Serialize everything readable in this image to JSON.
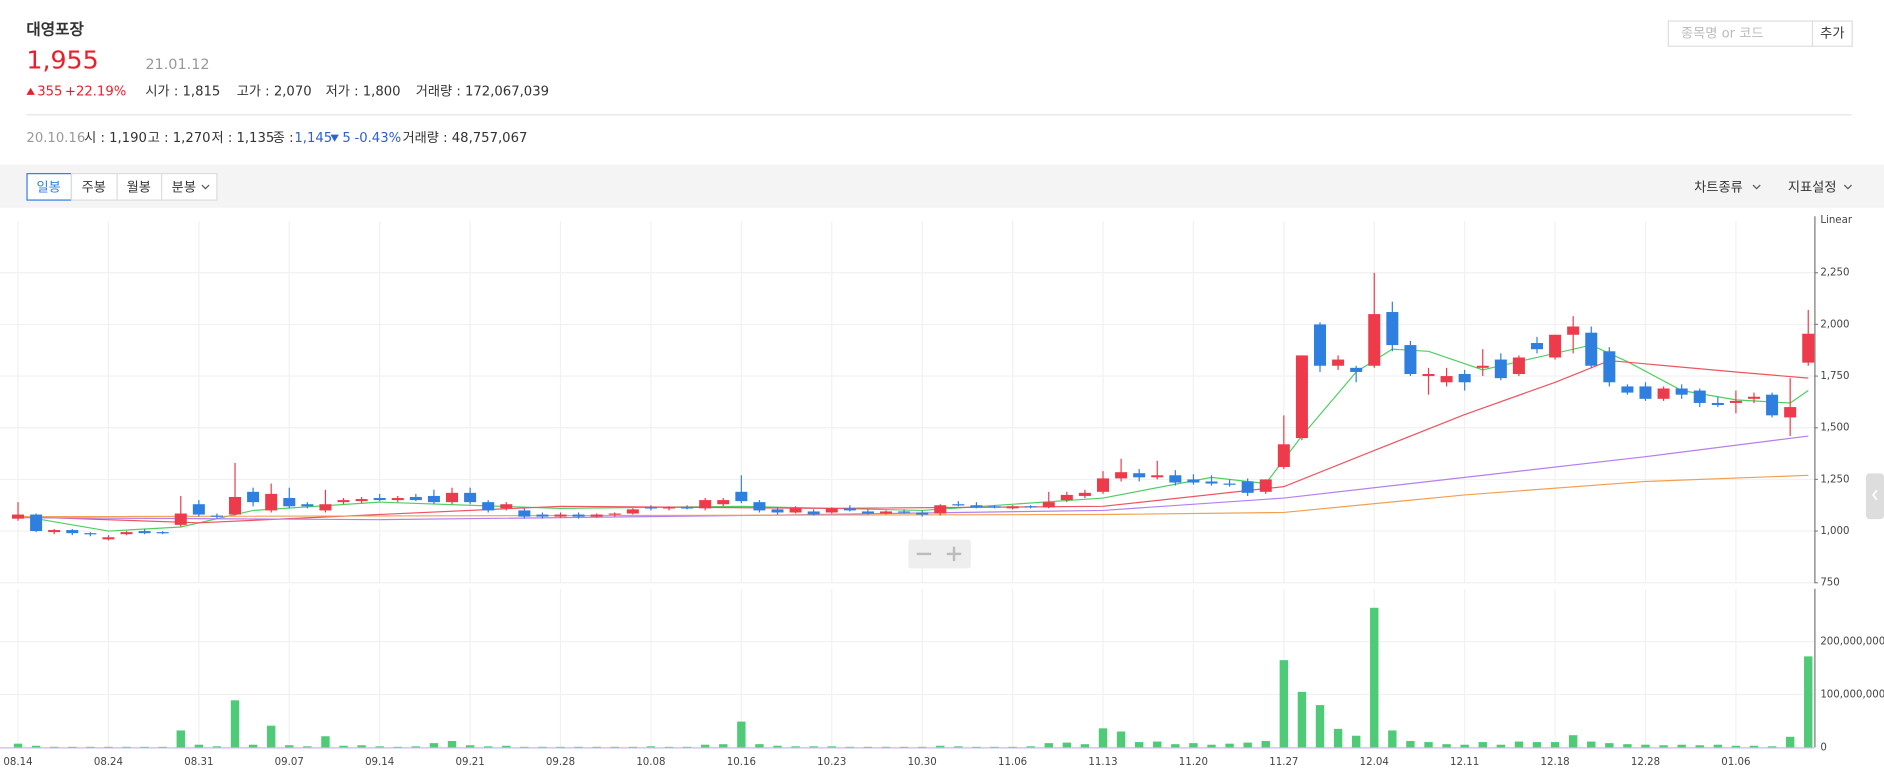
{
  "header": {
    "name": "대영포장",
    "price": "1,955",
    "date": "21.01.12",
    "change": "355",
    "change_rate": "+22.19%",
    "open": "시가 : 1,815",
    "high": "고가 : 2,070",
    "low": "저가 : 1,800",
    "volume": "거래량 : 172,067,039"
  },
  "tooltip": {
    "date": "20.10.16",
    "open": "시 : 1,190",
    "high": "고 : 1,270",
    "low": "저 : 1,135",
    "close_label": "종 :",
    "close": "1,145",
    "change": "5",
    "change_rate": "-0.43%",
    "volume": "거래량 : 48,757,067"
  },
  "search": {
    "placeholder": "종목명 or 코드",
    "button": "추가"
  },
  "toolbar": {
    "periods": [
      "일봉",
      "주봉",
      "월봉",
      "분봉"
    ],
    "chart_type": "차트종류",
    "indicators": "지표설정"
  },
  "chart_data": {
    "type": "candlestick",
    "scale_label": "Linear",
    "up_color": "#ee3b4b",
    "down_color": "#2f7fe0",
    "volume_color": "#4fcb78",
    "grid": true,
    "categories": [
      "08.14",
      null,
      null,
      null,
      null,
      "08.24",
      null,
      null,
      null,
      null,
      "08.31",
      null,
      null,
      null,
      null,
      "09.07",
      null,
      null,
      null,
      null,
      "09.14",
      null,
      null,
      null,
      null,
      "09.21",
      null,
      null,
      null,
      null,
      "09.28",
      null,
      null,
      null,
      null,
      "10.08",
      null,
      null,
      null,
      null,
      "10.16",
      null,
      null,
      null,
      null,
      "10.23",
      null,
      null,
      null,
      null,
      "10.30",
      null,
      null,
      null,
      null,
      "11.06",
      null,
      null,
      null,
      null,
      "11.13",
      null,
      null,
      null,
      null,
      "11.20",
      null,
      null,
      null,
      null,
      "11.27",
      null,
      null,
      null,
      null,
      "12.04",
      null,
      null,
      null,
      null,
      "12.11",
      null,
      null,
      null,
      null,
      "12.18",
      null,
      null,
      null,
      null,
      "12.28",
      null,
      null,
      null,
      null,
      "01.06",
      null,
      null,
      null,
      null
    ],
    "candles": [
      [
        1060,
        1140,
        1050,
        1080
      ],
      [
        1080,
        1085,
        995,
        1000
      ],
      [
        995,
        1010,
        985,
        1005
      ],
      [
        1005,
        1010,
        980,
        990
      ],
      [
        990,
        995,
        975,
        985
      ],
      [
        960,
        980,
        955,
        970
      ],
      [
        985,
        1000,
        980,
        995
      ],
      [
        1000,
        1010,
        985,
        990
      ],
      [
        995,
        1000,
        985,
        990
      ],
      [
        1030,
        1170,
        1020,
        1085
      ],
      [
        1130,
        1150,
        1070,
        1080
      ],
      [
        1075,
        1085,
        1060,
        1070
      ],
      [
        1080,
        1330,
        1075,
        1165
      ],
      [
        1190,
        1210,
        1120,
        1140
      ],
      [
        1100,
        1230,
        1090,
        1180
      ],
      [
        1160,
        1210,
        1110,
        1120
      ],
      [
        1130,
        1140,
        1110,
        1120
      ],
      [
        1100,
        1200,
        1090,
        1130
      ],
      [
        1140,
        1160,
        1130,
        1150
      ],
      [
        1145,
        1165,
        1135,
        1155
      ],
      [
        1160,
        1180,
        1145,
        1150
      ],
      [
        1150,
        1170,
        1140,
        1160
      ],
      [
        1165,
        1180,
        1145,
        1150
      ],
      [
        1170,
        1200,
        1130,
        1140
      ],
      [
        1140,
        1210,
        1130,
        1185
      ],
      [
        1185,
        1210,
        1130,
        1140
      ],
      [
        1140,
        1150,
        1090,
        1100
      ],
      [
        1110,
        1140,
        1100,
        1130
      ],
      [
        1100,
        1110,
        1060,
        1070
      ],
      [
        1080,
        1090,
        1060,
        1070
      ],
      [
        1070,
        1090,
        1065,
        1080
      ],
      [
        1080,
        1090,
        1060,
        1070
      ],
      [
        1070,
        1085,
        1065,
        1080
      ],
      [
        1080,
        1090,
        1070,
        1085
      ],
      [
        1085,
        1110,
        1080,
        1105
      ],
      [
        1115,
        1125,
        1100,
        1110
      ],
      [
        1110,
        1120,
        1100,
        1115
      ],
      [
        1115,
        1125,
        1105,
        1110
      ],
      [
        1110,
        1160,
        1100,
        1150
      ],
      [
        1130,
        1160,
        1120,
        1150
      ],
      [
        1190,
        1270,
        1135,
        1145
      ],
      [
        1140,
        1150,
        1090,
        1100
      ],
      [
        1105,
        1115,
        1080,
        1090
      ],
      [
        1090,
        1120,
        1085,
        1110
      ],
      [
        1095,
        1105,
        1075,
        1080
      ],
      [
        1090,
        1115,
        1085,
        1110
      ],
      [
        1110,
        1125,
        1095,
        1100
      ],
      [
        1095,
        1105,
        1080,
        1085
      ],
      [
        1085,
        1100,
        1080,
        1095
      ],
      [
        1095,
        1105,
        1085,
        1090
      ],
      [
        1090,
        1100,
        1070,
        1080
      ],
      [
        1085,
        1130,
        1075,
        1125
      ],
      [
        1130,
        1145,
        1120,
        1125
      ],
      [
        1125,
        1140,
        1110,
        1115
      ],
      [
        1120,
        1125,
        1110,
        1115
      ],
      [
        1110,
        1125,
        1105,
        1120
      ],
      [
        1120,
        1125,
        1110,
        1115
      ],
      [
        1115,
        1190,
        1110,
        1140
      ],
      [
        1150,
        1190,
        1140,
        1175
      ],
      [
        1170,
        1200,
        1160,
        1185
      ],
      [
        1190,
        1290,
        1180,
        1255
      ],
      [
        1255,
        1350,
        1240,
        1285
      ],
      [
        1280,
        1300,
        1240,
        1260
      ],
      [
        1260,
        1340,
        1250,
        1270
      ],
      [
        1270,
        1295,
        1220,
        1235
      ],
      [
        1250,
        1275,
        1225,
        1235
      ],
      [
        1240,
        1270,
        1220,
        1230
      ],
      [
        1230,
        1250,
        1215,
        1225
      ],
      [
        1240,
        1255,
        1170,
        1185
      ],
      [
        1190,
        1250,
        1180,
        1250
      ],
      [
        1310,
        1560,
        1300,
        1420
      ],
      [
        1450,
        1850,
        1440,
        1850
      ],
      [
        2000,
        2010,
        1770,
        1800
      ],
      [
        1800,
        1850,
        1780,
        1830
      ],
      [
        1790,
        1800,
        1720,
        1770
      ],
      [
        1800,
        2250,
        1790,
        2050
      ],
      [
        2060,
        2110,
        1870,
        1900
      ],
      [
        1900,
        1920,
        1750,
        1760
      ],
      [
        1750,
        1790,
        1660,
        1760
      ],
      [
        1720,
        1790,
        1700,
        1750
      ],
      [
        1760,
        1780,
        1680,
        1720
      ],
      [
        1790,
        1880,
        1750,
        1800
      ],
      [
        1830,
        1860,
        1730,
        1740
      ],
      [
        1760,
        1850,
        1750,
        1840
      ],
      [
        1910,
        1940,
        1860,
        1880
      ],
      [
        1840,
        1950,
        1830,
        1950
      ],
      [
        1950,
        2040,
        1860,
        1990
      ],
      [
        1960,
        1990,
        1790,
        1800
      ],
      [
        1870,
        1890,
        1700,
        1720
      ],
      [
        1700,
        1710,
        1660,
        1670
      ],
      [
        1700,
        1720,
        1630,
        1640
      ],
      [
        1640,
        1700,
        1630,
        1690
      ],
      [
        1690,
        1710,
        1640,
        1660
      ],
      [
        1680,
        1690,
        1600,
        1620
      ],
      [
        1620,
        1650,
        1600,
        1610
      ],
      [
        1620,
        1680,
        1570,
        1630
      ],
      [
        1640,
        1670,
        1620,
        1650
      ],
      [
        1660,
        1670,
        1550,
        1560
      ],
      [
        1550,
        1740,
        1460,
        1600
      ],
      [
        1815,
        2070,
        1800,
        1955
      ]
    ],
    "volume": [
      7000000,
      3000000,
      1000000,
      1000000,
      1000000,
      1000000,
      1000000,
      1000000,
      1000000,
      32000000,
      5000000,
      2000000,
      89000000,
      5000000,
      41000000,
      4000000,
      2000000,
      21000000,
      3000000,
      4000000,
      2000000,
      1000000,
      2000000,
      8000000,
      12000000,
      4000000,
      2000000,
      3000000,
      1000000,
      1000000,
      1000000,
      1000000,
      1000000,
      1000000,
      1000000,
      2000000,
      1000000,
      1000000,
      5000000,
      6000000,
      48757067,
      6000000,
      3000000,
      2000000,
      2000000,
      2000000,
      1000000,
      1000000,
      1000000,
      1000000,
      1000000,
      3000000,
      2000000,
      1000000,
      1000000,
      1000000,
      2000000,
      8000000,
      9000000,
      6000000,
      36000000,
      30000000,
      10000000,
      11000000,
      6000000,
      8000000,
      5000000,
      7000000,
      9000000,
      12000000,
      165000000,
      105000000,
      80000000,
      35000000,
      22000000,
      264000000,
      32000000,
      12000000,
      10000000,
      6000000,
      5000000,
      10000000,
      5000000,
      11000000,
      10000000,
      10000000,
      23000000,
      11000000,
      8000000,
      6000000,
      5000000,
      4000000,
      5000000,
      4000000,
      5000000,
      3000000,
      3000000,
      2000000,
      20000000,
      172067039
    ],
    "moving_averages": [
      {
        "color": "#4fcf63",
        "x": [
          0,
          5,
          9,
          13,
          20,
          30,
          40,
          50,
          60,
          66,
          69,
          71,
          74,
          76,
          78,
          81,
          84,
          87,
          89,
          92,
          95,
          98,
          99
        ],
        "values": [
          1075,
          1000,
          1020,
          1100,
          1140,
          1110,
          1120,
          1100,
          1160,
          1260,
          1230,
          1460,
          1770,
          1880,
          1870,
          1780,
          1840,
          1900,
          1820,
          1680,
          1635,
          1620,
          1680
        ]
      },
      {
        "color": "#ee5560",
        "x": [
          0,
          10,
          20,
          30,
          45,
          60,
          70,
          75,
          80,
          85,
          88,
          95,
          99
        ],
        "values": [
          1070,
          1040,
          1080,
          1120,
          1110,
          1120,
          1215,
          1390,
          1564,
          1720,
          1825,
          1770,
          1740
        ]
      },
      {
        "color": "#b47ff0",
        "x": [
          0,
          20,
          40,
          60,
          70,
          80,
          90,
          99
        ],
        "values": [
          1065,
          1055,
          1075,
          1100,
          1160,
          1260,
          1360,
          1460
        ]
      },
      {
        "color": "#f0a050",
        "x": [
          0,
          60,
          70,
          80,
          90,
          99
        ],
        "values": [
          1070,
          1080,
          1090,
          1175,
          1240,
          1270
        ]
      }
    ],
    "ylim": [
      750,
      2500
    ],
    "yticks": [
      {
        "value": 750,
        "label": "750"
      },
      {
        "value": 1000,
        "label": "1,000"
      },
      {
        "value": 1250,
        "label": "1,250"
      },
      {
        "value": 1500,
        "label": "1,500"
      },
      {
        "value": 1750,
        "label": "1,750"
      },
      {
        "value": 2000,
        "label": "2,000"
      },
      {
        "value": 2250,
        "label": "2,250"
      }
    ],
    "vlim": [
      0,
      300000000
    ],
    "vticks": [
      0,
      {
        "value": 100000000,
        "label": "100,000,000"
      },
      {
        "value": 200000000,
        "label": "200,000,000"
      }
    ]
  }
}
